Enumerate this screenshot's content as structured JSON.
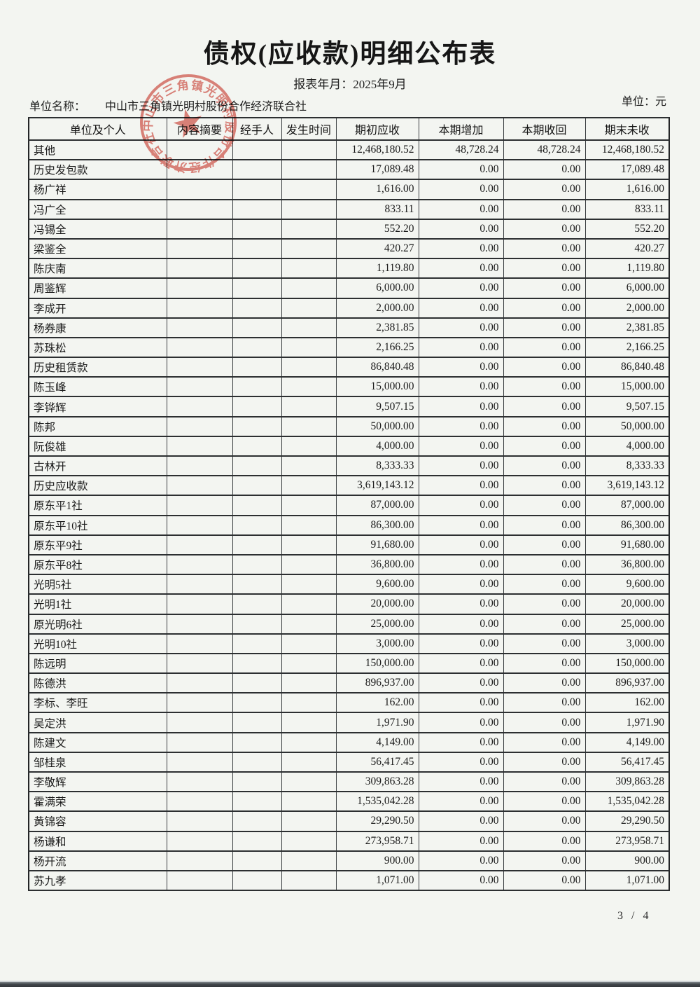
{
  "page": {
    "title": "债权(应收款)明细公布表",
    "report_period": "报表年月：2025年9月",
    "unit_name_label": "单位名称：",
    "unit_name": "中山市三角镇光明村股份合作经济联合社",
    "currency_label": "单位：元",
    "page_number": "3 / 4"
  },
  "seal": {
    "ring_text": "中山市三角镇光明村股份合作经济联合社",
    "color": "#d0392e"
  },
  "table": {
    "columns": [
      "单位及个人",
      "内容摘要",
      "经手人",
      "发生时间",
      "期初应收",
      "本期增加",
      "本期收回",
      "期末未收"
    ],
    "rows": [
      {
        "label": "其他",
        "indent": 0,
        "values": [
          "12,468,180.52",
          "48,728.24",
          "48,728.24",
          "12,468,180.52"
        ]
      },
      {
        "label": "历史发包款",
        "indent": 1,
        "values": [
          "17,089.48",
          "0.00",
          "0.00",
          "17,089.48"
        ]
      },
      {
        "label": "杨广祥",
        "indent": 2,
        "values": [
          "1,616.00",
          "0.00",
          "0.00",
          "1,616.00"
        ]
      },
      {
        "label": "冯广全",
        "indent": 2,
        "values": [
          "833.11",
          "0.00",
          "0.00",
          "833.11"
        ]
      },
      {
        "label": "冯锡全",
        "indent": 2,
        "values": [
          "552.20",
          "0.00",
          "0.00",
          "552.20"
        ]
      },
      {
        "label": "梁鉴全",
        "indent": 2,
        "values": [
          "420.27",
          "0.00",
          "0.00",
          "420.27"
        ]
      },
      {
        "label": "陈庆南",
        "indent": 2,
        "values": [
          "1,119.80",
          "0.00",
          "0.00",
          "1,119.80"
        ]
      },
      {
        "label": "周鉴辉",
        "indent": 2,
        "values": [
          "6,000.00",
          "0.00",
          "0.00",
          "6,000.00"
        ]
      },
      {
        "label": "李成开",
        "indent": 2,
        "values": [
          "2,000.00",
          "0.00",
          "0.00",
          "2,000.00"
        ]
      },
      {
        "label": "杨券康",
        "indent": 2,
        "values": [
          "2,381.85",
          "0.00",
          "0.00",
          "2,381.85"
        ]
      },
      {
        "label": "苏珠松",
        "indent": 2,
        "values": [
          "2,166.25",
          "0.00",
          "0.00",
          "2,166.25"
        ]
      },
      {
        "label": "历史租赁款",
        "indent": 1,
        "values": [
          "86,840.48",
          "0.00",
          "0.00",
          "86,840.48"
        ]
      },
      {
        "label": "陈玉峰",
        "indent": 2,
        "values": [
          "15,000.00",
          "0.00",
          "0.00",
          "15,000.00"
        ]
      },
      {
        "label": "李铧辉",
        "indent": 2,
        "values": [
          "9,507.15",
          "0.00",
          "0.00",
          "9,507.15"
        ]
      },
      {
        "label": "陈邦",
        "indent": 2,
        "values": [
          "50,000.00",
          "0.00",
          "0.00",
          "50,000.00"
        ]
      },
      {
        "label": "阮俊雄",
        "indent": 2,
        "values": [
          "4,000.00",
          "0.00",
          "0.00",
          "4,000.00"
        ]
      },
      {
        "label": "古林开",
        "indent": 2,
        "values": [
          "8,333.33",
          "0.00",
          "0.00",
          "8,333.33"
        ]
      },
      {
        "label": "历史应收款",
        "indent": 1,
        "values": [
          "3,619,143.12",
          "0.00",
          "0.00",
          "3,619,143.12"
        ]
      },
      {
        "label": "原东平1社",
        "indent": 2,
        "values": [
          "87,000.00",
          "0.00",
          "0.00",
          "87,000.00"
        ]
      },
      {
        "label": "原东平10社",
        "indent": 2,
        "values": [
          "86,300.00",
          "0.00",
          "0.00",
          "86,300.00"
        ]
      },
      {
        "label": "原东平9社",
        "indent": 2,
        "values": [
          "91,680.00",
          "0.00",
          "0.00",
          "91,680.00"
        ]
      },
      {
        "label": "原东平8社",
        "indent": 2,
        "values": [
          "36,800.00",
          "0.00",
          "0.00",
          "36,800.00"
        ]
      },
      {
        "label": "光明5社",
        "indent": 2,
        "values": [
          "9,600.00",
          "0.00",
          "0.00",
          "9,600.00"
        ]
      },
      {
        "label": "光明1社",
        "indent": 2,
        "values": [
          "20,000.00",
          "0.00",
          "0.00",
          "20,000.00"
        ]
      },
      {
        "label": "原光明6社",
        "indent": 2,
        "values": [
          "25,000.00",
          "0.00",
          "0.00",
          "25,000.00"
        ]
      },
      {
        "label": "光明10社",
        "indent": 2,
        "values": [
          "3,000.00",
          "0.00",
          "0.00",
          "3,000.00"
        ]
      },
      {
        "label": "陈远明",
        "indent": 2,
        "values": [
          "150,000.00",
          "0.00",
          "0.00",
          "150,000.00"
        ]
      },
      {
        "label": "陈德洪",
        "indent": 2,
        "values": [
          "896,937.00",
          "0.00",
          "0.00",
          "896,937.00"
        ]
      },
      {
        "label": "李标、李旺",
        "indent": 2,
        "values": [
          "162.00",
          "0.00",
          "0.00",
          "162.00"
        ]
      },
      {
        "label": "吴定洪",
        "indent": 2,
        "values": [
          "1,971.90",
          "0.00",
          "0.00",
          "1,971.90"
        ]
      },
      {
        "label": "陈建文",
        "indent": 2,
        "values": [
          "4,149.00",
          "0.00",
          "0.00",
          "4,149.00"
        ]
      },
      {
        "label": "邹桂泉",
        "indent": 2,
        "values": [
          "56,417.45",
          "0.00",
          "0.00",
          "56,417.45"
        ]
      },
      {
        "label": "李敬辉",
        "indent": 2,
        "values": [
          "309,863.28",
          "0.00",
          "0.00",
          "309,863.28"
        ]
      },
      {
        "label": "霍满荣",
        "indent": 2,
        "values": [
          "1,535,042.28",
          "0.00",
          "0.00",
          "1,535,042.28"
        ]
      },
      {
        "label": "黄锦容",
        "indent": 2,
        "values": [
          "29,290.50",
          "0.00",
          "0.00",
          "29,290.50"
        ]
      },
      {
        "label": "杨谦和",
        "indent": 2,
        "values": [
          "273,958.71",
          "0.00",
          "0.00",
          "273,958.71"
        ]
      },
      {
        "label": "杨开流",
        "indent": 2,
        "values": [
          "900.00",
          "0.00",
          "0.00",
          "900.00"
        ]
      },
      {
        "label": "苏九孝",
        "indent": 2,
        "values": [
          "1,071.00",
          "0.00",
          "0.00",
          "1,071.00"
        ]
      }
    ]
  }
}
